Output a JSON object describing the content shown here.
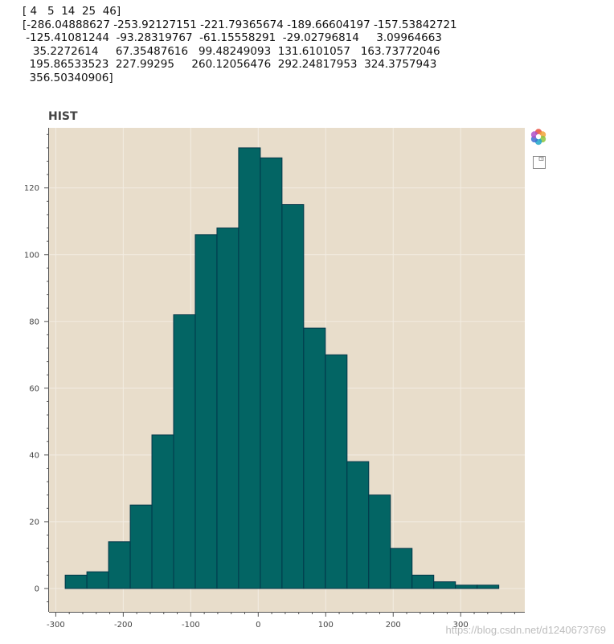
{
  "console_lines": [
    "[ 4   5  14  25  46]",
    "[-286.04888627 -253.92127151 -221.79365674 -189.66604197 -157.53842721",
    " -125.41081244  -93.28319767  -61.15558291  -29.02796814     3.09964663",
    "   35.2272614     67.35487616   99.48249093  131.6101057   163.73772046",
    "  195.86533523  227.99295     260.12056476  292.24817953  324.3757943",
    "  356.50340906]"
  ],
  "chart_data": {
    "type": "bar",
    "title": "HIST",
    "bin_edges": [
      -286.04888627,
      -253.92127151,
      -221.79365674,
      -189.66604197,
      -157.53842721,
      -125.41081244,
      -93.28319767,
      -61.15558291,
      -29.02796814,
      3.09964663,
      35.2272614,
      67.35487616,
      99.48249093,
      131.6101057,
      163.73772046,
      195.86533523,
      227.99295,
      260.12056476,
      292.24817953,
      324.3757943,
      356.50340906
    ],
    "values": [
      4,
      5,
      14,
      25,
      46,
      82,
      106,
      108,
      132,
      129,
      115,
      78,
      70,
      38,
      28,
      12,
      4,
      2,
      1,
      1
    ],
    "xlim": [
      -310,
      395
    ],
    "ylim": [
      -7,
      138
    ],
    "xticks": [
      -300,
      -200,
      -100,
      0,
      100,
      200,
      300
    ],
    "yticks": [
      0,
      20,
      40,
      60,
      80,
      100,
      120
    ],
    "grid": true,
    "colors": {
      "bar_fill": "#036564",
      "bar_stroke": "#033649",
      "plot_background": "#e8ddcb",
      "grid": "#f2ece2"
    }
  },
  "toolbar": {
    "icons": [
      "bokeh-logo-icon",
      "save-icon"
    ]
  },
  "watermark": "https://blog.csdn.net/d1240673769"
}
